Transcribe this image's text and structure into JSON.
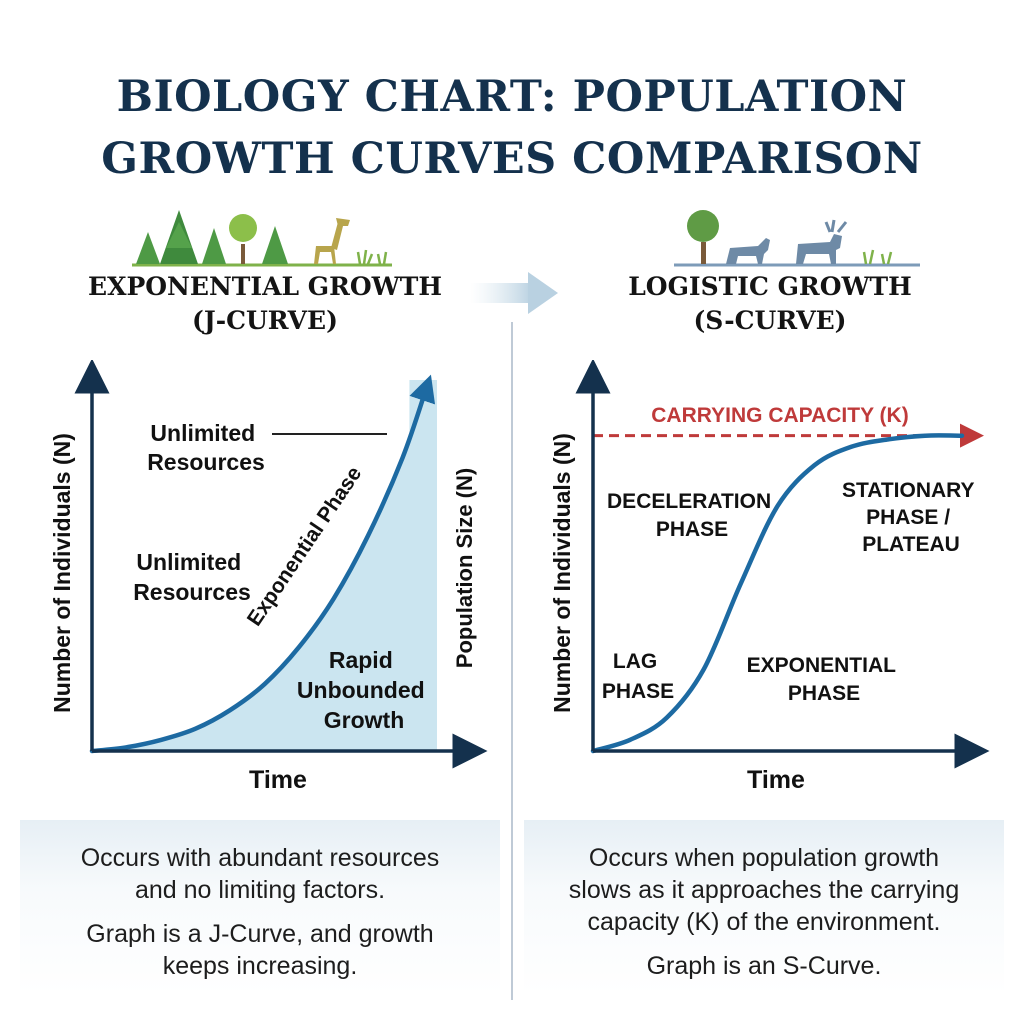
{
  "title_lines": [
    "BIOLOGY CHART: POPULATION",
    "GROWTH CURVES COMPARISON"
  ],
  "colors": {
    "title": "#14314d",
    "curve": "#1d6aa2",
    "fill": "#cbe5f0",
    "capacity": "#bf3a3a",
    "axis": "#14314d",
    "grass": "#7fb24a",
    "animals": "#6e8aa6"
  },
  "icons": {
    "left": [
      "pine-tree-icon",
      "pine-tree-icon",
      "pine-tree-icon",
      "round-tree-icon",
      "round-tree-icon",
      "pine-tree-icon",
      "giraffe-icon",
      "grass-icon"
    ],
    "right": [
      "round-tree-icon",
      "wolf-icon",
      "moose-icon",
      "grass-icon"
    ]
  },
  "left_panel": {
    "title_lines": [
      "EXPONENTIAL GROWTH",
      "(J-CURVE)"
    ],
    "description": [
      "Occurs with abundant resources",
      "and no limiting factors.",
      "Graph is a J-Curve, and growth",
      "keeps increasing."
    ]
  },
  "right_panel": {
    "title_lines": [
      "LOGISTIC GROWTH",
      "(S-CURVE)"
    ],
    "description": [
      "Occurs when population growth",
      "slows as it approaches the carrying",
      "capacity (K) of the environment.",
      "Graph is an S-Curve."
    ]
  },
  "chart_data": [
    {
      "type": "line",
      "curve_shape": "exponential",
      "x_axis_range": [
        0,
        1
      ],
      "y_axis_range": [
        0,
        1
      ],
      "x": [
        0,
        0.1,
        0.2,
        0.3,
        0.4,
        0.5,
        0.6,
        0.7,
        0.8,
        0.9,
        0.97
      ],
      "y": [
        0,
        0.01,
        0.03,
        0.06,
        0.11,
        0.18,
        0.28,
        0.41,
        0.58,
        0.79,
        0.98
      ],
      "shaded_region_x": [
        0.92,
        1.0
      ],
      "xlabel": "Time",
      "ylabel": "Number of Individuals (N)",
      "secondary_ylabel": "Population Size (N)",
      "curve_label": "Exponential Phase",
      "annotations": [
        {
          "lines": [
            "Unlimited",
            "Resources"
          ],
          "kind": "callout"
        },
        {
          "lines": [
            "Unlimited",
            "Resources"
          ],
          "kind": "text"
        },
        {
          "lines": [
            "Rapid",
            "Unbounded",
            "Growth"
          ],
          "kind": "text"
        }
      ]
    },
    {
      "type": "line",
      "curve_shape": "logistic",
      "x_axis_range": [
        0,
        1
      ],
      "y_axis_range": [
        0,
        1
      ],
      "carrying_capacity": 0.85,
      "x": [
        0,
        0.1,
        0.2,
        0.3,
        0.4,
        0.5,
        0.6,
        0.7,
        0.8,
        0.9,
        1.0
      ],
      "y": [
        0,
        0.03,
        0.09,
        0.22,
        0.45,
        0.66,
        0.77,
        0.82,
        0.84,
        0.85,
        0.85
      ],
      "xlabel": "Time",
      "ylabel": "Number of Individuals (N)",
      "capacity_label": "CARRYING CAPACITY (K)",
      "phase_labels": [
        {
          "lines": [
            "LAG",
            "PHASE"
          ]
        },
        {
          "lines": [
            "EXPONENTIAL",
            "PHASE"
          ]
        },
        {
          "lines": [
            "DECELERATION",
            "PHASE"
          ]
        },
        {
          "lines": [
            "STATIONARY",
            "PHASE /",
            "PLATEAU"
          ]
        }
      ]
    }
  ]
}
